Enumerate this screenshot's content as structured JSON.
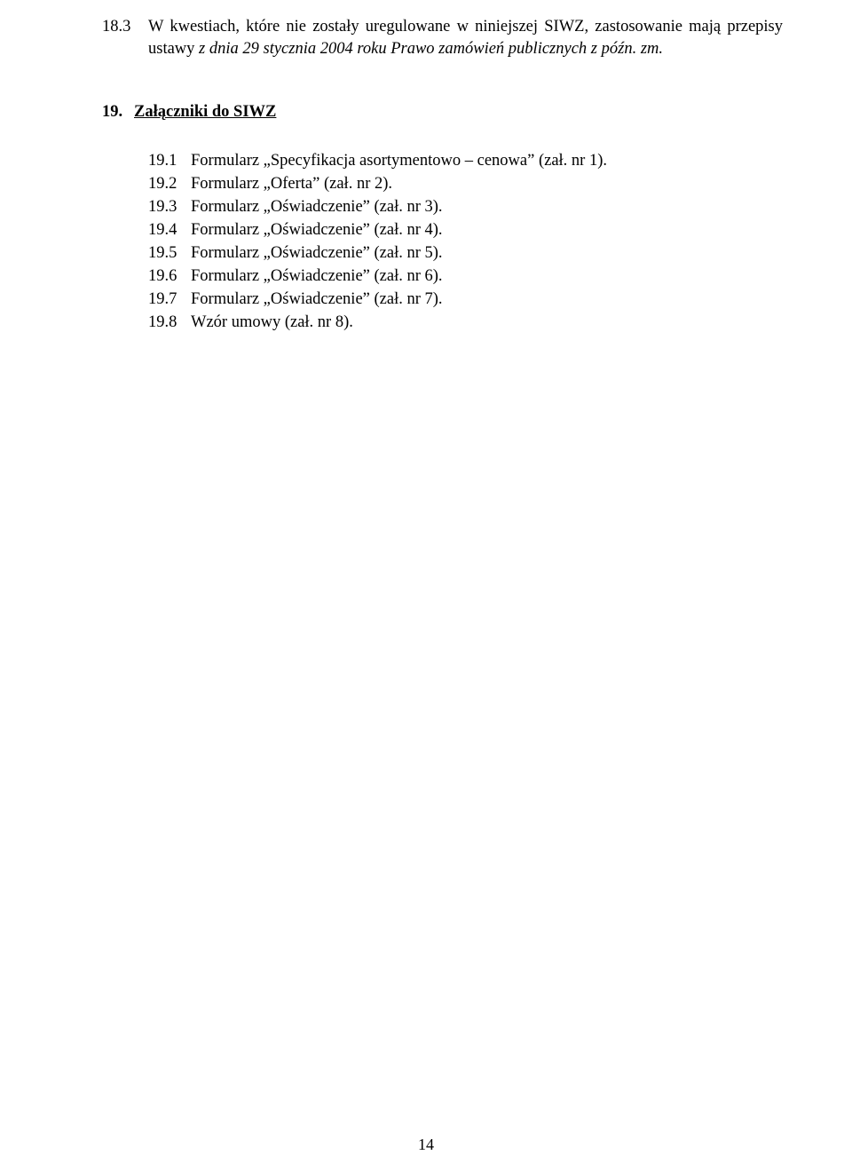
{
  "colors": {
    "background": "#ffffff",
    "text": "#000000"
  },
  "typography": {
    "family": "Times New Roman",
    "body_size_pt": 14,
    "line_height": 1.35
  },
  "paragraph": {
    "number": "18.3",
    "text_plain": "W kwestiach, które nie zostały uregulowane w niniejszej SIWZ, zastosowanie mają przepisy ustawy ",
    "text_italic": "z dnia 29 stycznia 2004 roku Prawo zamówień publicznych z późn. zm."
  },
  "section": {
    "number": "19.",
    "title": "Załączniki do SIWZ"
  },
  "attachments": [
    {
      "num": "19.1",
      "label": "Formularz „Specyfikacja asortymentowo – cenowa” (zał. nr 1)."
    },
    {
      "num": "19.2",
      "label": "Formularz „Oferta” (zał. nr 2)."
    },
    {
      "num": "19.3",
      "label": "Formularz „Oświadczenie” (zał. nr 3)."
    },
    {
      "num": "19.4",
      "label": "Formularz „Oświadczenie” (zał. nr 4)."
    },
    {
      "num": "19.5",
      "label": "Formularz „Oświadczenie” (zał. nr 5)."
    },
    {
      "num": "19.6",
      "label": "Formularz „Oświadczenie” (zał. nr 6)."
    },
    {
      "num": "19.7",
      "label": "Formularz „Oświadczenie” (zał. nr 7)."
    },
    {
      "num": "19.8",
      "label": "Wzór umowy (zał. nr 8)."
    }
  ],
  "page_number": "14"
}
